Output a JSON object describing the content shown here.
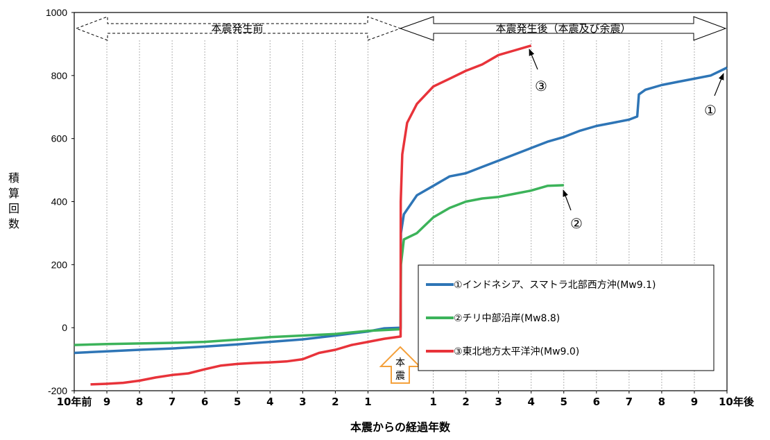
{
  "chart_data": {
    "type": "line",
    "x_unit": "years relative to main shock",
    "ylabel": "積算回数",
    "xlabel": "本震からの経過年数",
    "ylim": [
      -200,
      1000
    ],
    "xlim": [
      -10,
      10
    ],
    "grid": "vertical-yearly",
    "legend_position": "bottom-right",
    "y_ticks": [
      "-200",
      "0",
      "200",
      "400",
      "600",
      "800",
      "1000"
    ],
    "x_ticks": [
      {
        "x": -10,
        "label": "10年前"
      },
      {
        "x": -9,
        "label": "9"
      },
      {
        "x": -8,
        "label": "8"
      },
      {
        "x": -7,
        "label": "7"
      },
      {
        "x": -6,
        "label": "6"
      },
      {
        "x": -5,
        "label": "5"
      },
      {
        "x": -4,
        "label": "4"
      },
      {
        "x": -3,
        "label": "3"
      },
      {
        "x": -2,
        "label": "2"
      },
      {
        "x": -1,
        "label": "1"
      },
      {
        "x": 1,
        "label": "1"
      },
      {
        "x": 2,
        "label": "2"
      },
      {
        "x": 3,
        "label": "3"
      },
      {
        "x": 4,
        "label": "4"
      },
      {
        "x": 5,
        "label": "5"
      },
      {
        "x": 6,
        "label": "6"
      },
      {
        "x": 7,
        "label": "7"
      },
      {
        "x": 8,
        "label": "8"
      },
      {
        "x": 9,
        "label": "9"
      },
      {
        "x": 10,
        "label": "10"
      }
    ],
    "x_end_suffix": "年後",
    "period_labels": {
      "before": "本震発生前",
      "after": "本震発生後（本震及び余震）"
    },
    "mainshock_label": "本震",
    "series": [
      {
        "name": "①インドネシア、スマトラ北部西方沖(Mw9.1)",
        "marker": "①",
        "color": "#2e75b6",
        "x": [
          -10,
          -9,
          -8,
          -7,
          -6,
          -5,
          -4,
          -3,
          -2,
          -1,
          -0.5,
          0,
          0.01,
          0.1,
          0.5,
          1,
          1.5,
          2,
          2.5,
          3,
          3.5,
          4,
          4.5,
          5,
          5.5,
          6,
          6.5,
          7,
          7.25,
          7.3,
          7.5,
          8,
          8.5,
          9,
          9.5,
          10
        ],
        "y": [
          -80,
          -75,
          -70,
          -66,
          -60,
          -53,
          -45,
          -37,
          -25,
          -12,
          -2,
          0,
          300,
          360,
          420,
          450,
          480,
          490,
          510,
          530,
          550,
          570,
          590,
          605,
          625,
          640,
          650,
          660,
          670,
          740,
          755,
          770,
          780,
          790,
          800,
          825
        ]
      },
      {
        "name": "②チリ中部沿岸(Mw8.8)",
        "marker": "②",
        "color": "#3cb35a",
        "x": [
          -10,
          -9,
          -8,
          -7,
          -6,
          -5,
          -4,
          -3,
          -2,
          -1,
          0,
          0.01,
          0.1,
          0.5,
          1,
          1.5,
          2,
          2.5,
          3,
          3.5,
          4,
          4.5,
          5
        ],
        "y": [
          -55,
          -52,
          -50,
          -48,
          -45,
          -38,
          -30,
          -25,
          -20,
          -10,
          -5,
          200,
          280,
          300,
          350,
          380,
          400,
          410,
          415,
          425,
          435,
          450,
          452
        ]
      },
      {
        "name": "③東北地方太平洋沖(Mw9.0)",
        "marker": "③",
        "color": "#e8333a",
        "x": [
          -9.5,
          -9,
          -8.5,
          -8,
          -7.5,
          -7,
          -6.5,
          -6,
          -5.5,
          -5,
          -4.5,
          -4,
          -3.5,
          -3,
          -2.5,
          -2,
          -1.5,
          -1,
          -0.5,
          0,
          0.005,
          0.05,
          0.2,
          0.5,
          1,
          1.5,
          2,
          2.5,
          3,
          3.5,
          4
        ],
        "y": [
          -180,
          -178,
          -175,
          -168,
          -158,
          -150,
          -145,
          -132,
          -120,
          -115,
          -112,
          -110,
          -107,
          -100,
          -80,
          -70,
          -55,
          -45,
          -35,
          -28,
          400,
          550,
          650,
          710,
          765,
          790,
          815,
          835,
          865,
          880,
          895
        ]
      }
    ]
  }
}
